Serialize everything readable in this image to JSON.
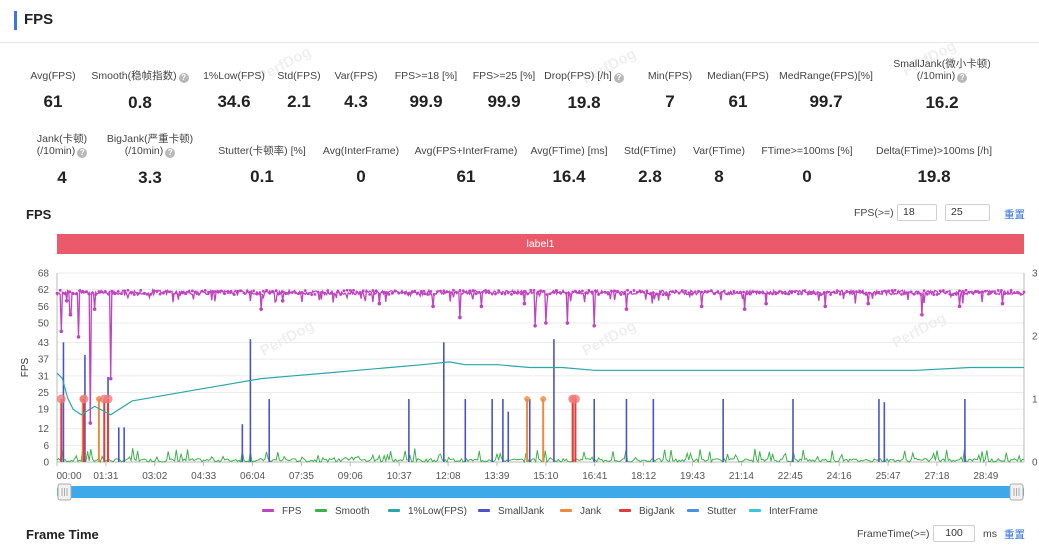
{
  "header": {
    "title": "FPS"
  },
  "watermark": "PerfDog",
  "stats_row1": [
    {
      "label": "Avg(FPS)",
      "value": "61",
      "help": false
    },
    {
      "label": "Smooth(稳帧指数)",
      "value": "0.8",
      "help": true
    },
    {
      "label": "1%Low(FPS)",
      "value": "34.6",
      "help": false
    },
    {
      "label": "Std(FPS)",
      "value": "2.1",
      "help": false
    },
    {
      "label": "Var(FPS)",
      "value": "4.3",
      "help": false
    },
    {
      "label": "FPS>=18 [%]",
      "value": "99.9",
      "help": false
    },
    {
      "label": "FPS>=25 [%]",
      "value": "99.9",
      "help": false
    },
    {
      "label": "Drop(FPS) [/h]",
      "value": "19.8",
      "help": true
    },
    {
      "label": "Min(FPS)",
      "value": "7",
      "help": false
    },
    {
      "label": "Median(FPS)",
      "value": "61",
      "help": false
    },
    {
      "label": "MedRange(FPS)[%]",
      "value": "99.7",
      "help": false
    },
    {
      "label": "SmallJank(微小卡顿)",
      "label2": "(/10min)",
      "value": "16.2",
      "help": true
    }
  ],
  "stats_row2": [
    {
      "label": "Jank(卡顿)",
      "label2": "(/10min)",
      "value": "4",
      "help": true
    },
    {
      "label": "BigJank(严重卡顿)",
      "label2": "(/10min)",
      "value": "3.3",
      "help": true
    },
    {
      "label": "Stutter(卡顿率) [%]",
      "value": "0.1",
      "help": false
    },
    {
      "label": "Avg(InterFrame)",
      "value": "0",
      "help": false
    },
    {
      "label": "Avg(FPS+InterFrame)",
      "value": "61",
      "help": false
    },
    {
      "label": "Avg(FTime) [ms]",
      "value": "16.4",
      "help": false
    },
    {
      "label": "Std(FTime)",
      "value": "2.8",
      "help": false
    },
    {
      "label": "Var(FTime)",
      "value": "8",
      "help": false
    },
    {
      "label": "FTime>=100ms [%]",
      "value": "0",
      "help": false
    },
    {
      "label": "Delta(FTime)>100ms [/h]",
      "value": "19.8",
      "help": false
    }
  ],
  "fps_section": {
    "title": "FPS",
    "threshold_label": "FPS(>=)",
    "threshold1": "18",
    "threshold2": "25",
    "reset_label": "重置",
    "label_bar": "label1"
  },
  "frame_time_section": {
    "title": "Frame Time",
    "threshold_label": "FrameTime(>=)",
    "threshold_value": "100",
    "unit": "ms",
    "reset_label": "重置"
  },
  "colors": {
    "fps": "#c043c0",
    "smooth": "#3cb24a",
    "low1": "#2aa7a7",
    "smalljank": "#4a54c8",
    "jank": "#f08a3c",
    "bigjank": "#e03c3c",
    "stutter": "#4a90e2",
    "interframe": "#36c6e0",
    "labelbar": "#eb5a6b",
    "scrollbar": "#3ea9e8"
  },
  "chart_data": {
    "type": "line",
    "ylabel": "FPS",
    "y_ticks": [
      "68",
      "62",
      "56",
      "50",
      "43",
      "37",
      "31",
      "25",
      "19",
      "12",
      "6",
      "0"
    ],
    "y_ticks_values": [
      68,
      62,
      56,
      50,
      43,
      37,
      31,
      25,
      19,
      12,
      6,
      0
    ],
    "y2_ticks": [
      "3",
      "2",
      "1",
      "0"
    ],
    "x_ticks": [
      "00:00",
      "01:31",
      "03:02",
      "04:33",
      "06:04",
      "07:35",
      "09:06",
      "10:37",
      "12:08",
      "13:39",
      "15:10",
      "16:41",
      "18:12",
      "19:43",
      "21:14",
      "22:45",
      "24:16",
      "25:47",
      "27:18",
      "28:49"
    ],
    "x_ticks_seconds": [
      0,
      91,
      182,
      273,
      364,
      455,
      546,
      637,
      728,
      819,
      910,
      1001,
      1092,
      1183,
      1274,
      1365,
      1456,
      1547,
      1638,
      1729
    ],
    "x_range_seconds": [
      0,
      1800
    ],
    "ylim": [
      0,
      68
    ],
    "y2lim": [
      0,
      3
    ],
    "fps_baseline": 61,
    "fps_dips": [
      [
        8,
        47
      ],
      [
        18,
        58
      ],
      [
        25,
        53
      ],
      [
        40,
        45
      ],
      [
        62,
        14
      ],
      [
        70,
        55
      ],
      [
        100,
        30
      ],
      [
        380,
        55
      ],
      [
        420,
        58
      ],
      [
        600,
        57
      ],
      [
        700,
        56
      ],
      [
        750,
        52
      ],
      [
        790,
        56
      ],
      [
        870,
        57
      ],
      [
        890,
        49
      ],
      [
        910,
        50
      ],
      [
        950,
        50
      ],
      [
        1000,
        49
      ],
      [
        1060,
        55
      ],
      [
        1200,
        56
      ],
      [
        1280,
        55
      ],
      [
        1320,
        57
      ],
      [
        1430,
        56
      ],
      [
        1510,
        57
      ],
      [
        1610,
        53
      ],
      [
        1680,
        56
      ],
      [
        1760,
        57
      ]
    ],
    "low1_points": [
      [
        0,
        32
      ],
      [
        10,
        30
      ],
      [
        20,
        23
      ],
      [
        30,
        19
      ],
      [
        45,
        17
      ],
      [
        70,
        20
      ],
      [
        100,
        17
      ],
      [
        140,
        22
      ],
      [
        200,
        24
      ],
      [
        260,
        26
      ],
      [
        320,
        28
      ],
      [
        380,
        30
      ],
      [
        440,
        31
      ],
      [
        500,
        32
      ],
      [
        560,
        33
      ],
      [
        620,
        34
      ],
      [
        680,
        35
      ],
      [
        730,
        36
      ],
      [
        760,
        35
      ],
      [
        820,
        35
      ],
      [
        880,
        34
      ],
      [
        940,
        34
      ],
      [
        1000,
        33
      ],
      [
        1100,
        33
      ],
      [
        1200,
        33
      ],
      [
        1300,
        33
      ],
      [
        1400,
        33
      ],
      [
        1500,
        33
      ],
      [
        1600,
        33
      ],
      [
        1700,
        34
      ],
      [
        1800,
        34
      ]
    ],
    "smalljank_events": [
      [
        12,
        1.9
      ],
      [
        52,
        1.7
      ],
      [
        95,
        1.35
      ],
      [
        115,
        0.55
      ],
      [
        125,
        0.55
      ],
      [
        345,
        0.6
      ],
      [
        360,
        1.95
      ],
      [
        395,
        1.0
      ],
      [
        655,
        1.0
      ],
      [
        720,
        1.9
      ],
      [
        760,
        1.0
      ],
      [
        810,
        1.0
      ],
      [
        830,
        1.0
      ],
      [
        840,
        0.8
      ],
      [
        880,
        1.0
      ],
      [
        925,
        1.95
      ],
      [
        1000,
        1.0
      ],
      [
        1060,
        1.0
      ],
      [
        1110,
        1.0
      ],
      [
        1240,
        1.0
      ],
      [
        1370,
        1.0
      ],
      [
        1530,
        1.0
      ],
      [
        1540,
        0.95
      ],
      [
        1690,
        1.0
      ]
    ],
    "jank_events": [
      [
        48,
        1.0
      ],
      [
        78,
        1.0
      ],
      [
        875,
        1.0
      ],
      [
        905,
        1.0
      ],
      [
        960,
        1.0
      ]
    ],
    "bigjank_events": [
      [
        8,
        1.0
      ],
      [
        50,
        1.0
      ],
      [
        88,
        1.0
      ],
      [
        95,
        1.0
      ],
      [
        960,
        1.0
      ],
      [
        965,
        1.0
      ]
    ],
    "legend": [
      "FPS",
      "Smooth",
      "1%Low(FPS)",
      "SmallJank",
      "Jank",
      "BigJank",
      "Stutter",
      "InterFrame"
    ]
  }
}
